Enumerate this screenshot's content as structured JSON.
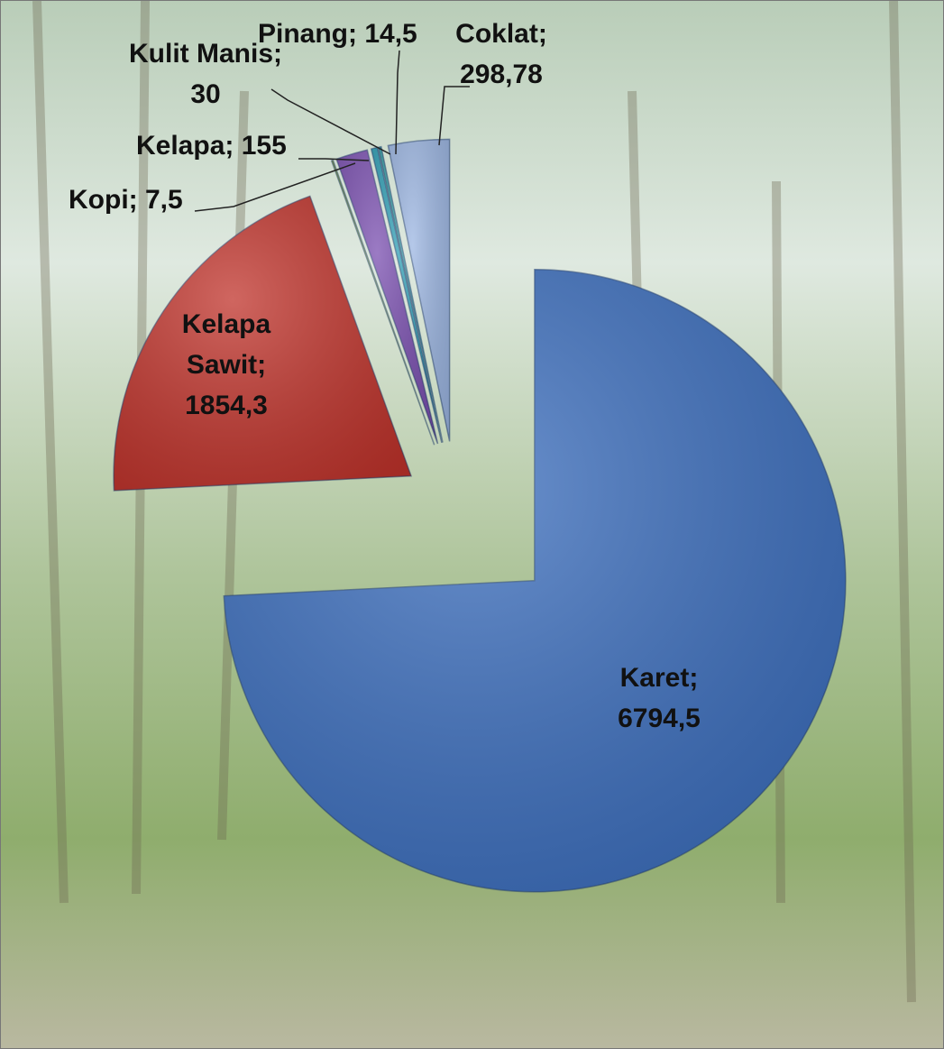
{
  "chart_data": {
    "type": "pie",
    "categories": [
      "Karet",
      "Kelapa Sawit",
      "Kopi",
      "Kelapa",
      "Kulit Manis",
      "Pinang",
      "Coklat"
    ],
    "values": [
      6794.5,
      1854.3,
      7.5,
      155,
      30,
      14.5,
      298.78
    ],
    "value_labels": [
      "6794,5",
      "1854,3",
      "7,5",
      "155",
      "30",
      "14,5",
      "298,78"
    ],
    "label_separator": "; ",
    "colors": [
      "#3a6dbd",
      "#c0332b",
      "#8fb34a",
      "#7a4fb0",
      "#2f9fb5",
      "#3aa0a8",
      "#9cb6e2"
    ]
  }
}
